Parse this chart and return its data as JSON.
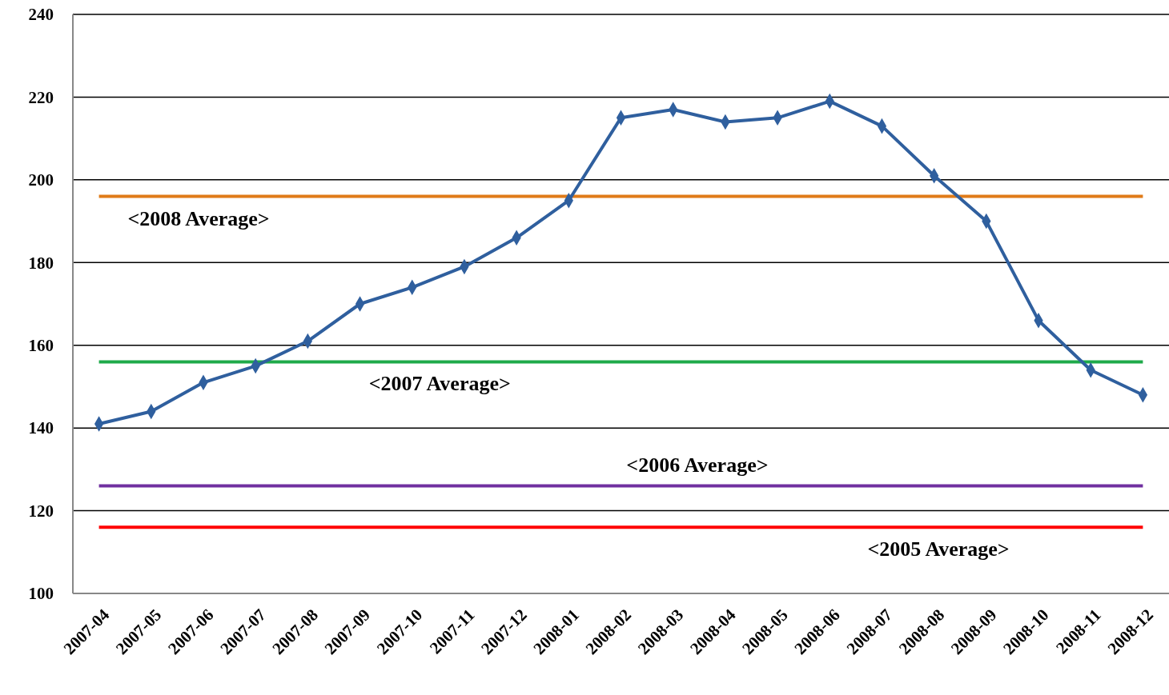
{
  "chart_data": {
    "type": "line",
    "categories": [
      "2007-04",
      "2007-05",
      "2007-06",
      "2007-07",
      "2007-08",
      "2007-09",
      "2007-10",
      "2007-11",
      "2007-12",
      "2008-01",
      "2008-02",
      "2008-03",
      "2008-04",
      "2008-05",
      "2008-06",
      "2008-07",
      "2008-08",
      "2008-09",
      "2008-10",
      "2008-11",
      "2008-12"
    ],
    "series": [
      {
        "color": "#2f5f9e",
        "values": [
          141,
          144,
          151,
          155,
          161,
          170,
          174,
          179,
          186,
          195,
          215,
          217,
          214,
          215,
          219,
          213,
          201,
          190,
          166,
          154,
          148
        ]
      }
    ],
    "ylim": [
      100,
      240
    ],
    "yticks": [
      100,
      120,
      140,
      160,
      180,
      200,
      220,
      240
    ],
    "grid": "y",
    "marker": "diamond",
    "line_style": "solid",
    "ref_lines": [
      {
        "axis": "y",
        "value": 196,
        "label": "<2008 Average>",
        "color": "#e07b18"
      },
      {
        "axis": "y",
        "value": 156,
        "label": "<2007 Average>",
        "color": "#1faa4a"
      },
      {
        "axis": "y",
        "value": 126,
        "label": "<2006 Average>",
        "color": "#7030a0"
      },
      {
        "axis": "y",
        "value": 116,
        "label": "<2005 Average>",
        "color": "#ff0000"
      }
    ]
  }
}
